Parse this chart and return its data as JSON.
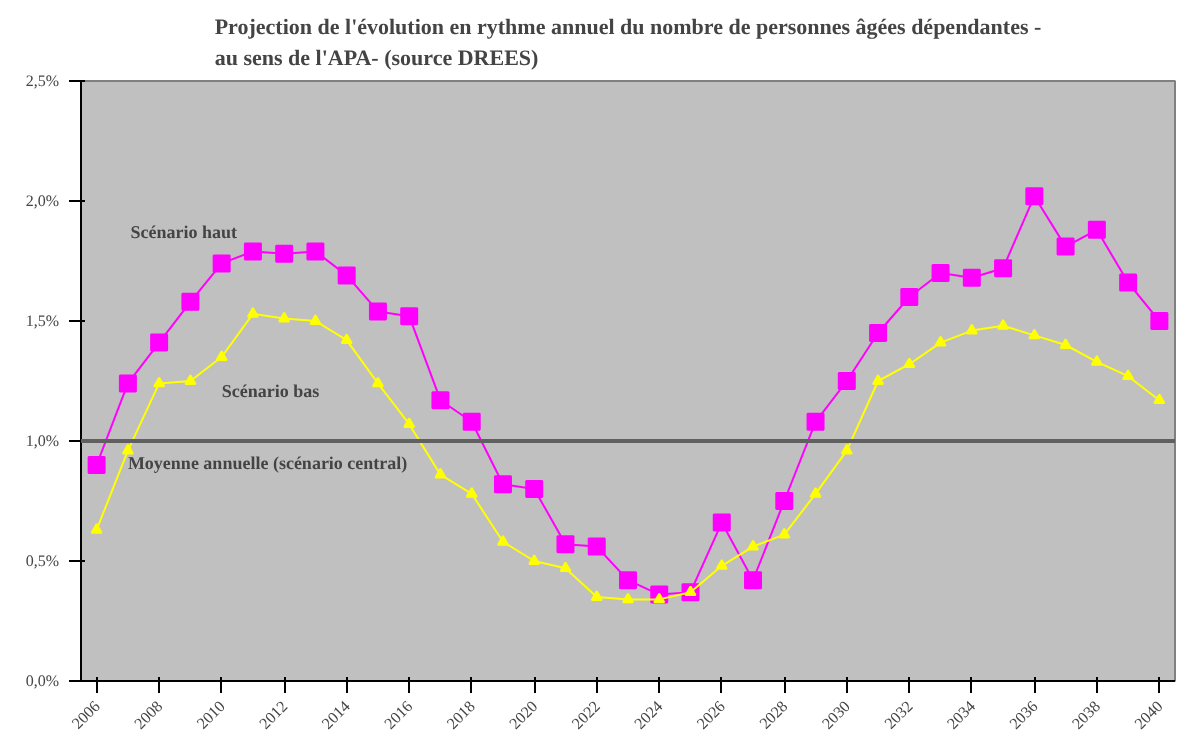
{
  "chart_data": {
    "type": "line",
    "title": "Projection de l'évolution en rythme annuel du nombre de personnes âgées dépendantes -\nau sens de l'APA- (source DREES)",
    "categories": [
      "2006",
      null,
      "2008",
      null,
      "2010",
      null,
      "2012",
      null,
      "2014",
      null,
      "2016",
      null,
      "2018",
      null,
      "2020",
      null,
      "2022",
      null,
      "2024",
      null,
      "2026",
      null,
      "2028",
      null,
      "2030",
      null,
      "2032",
      null,
      "2034",
      null,
      "2036",
      null,
      "2038",
      null,
      "2040"
    ],
    "series": [
      {
        "name": "Scénario haut",
        "color": "#ff00ff",
        "marker": "square",
        "values": [
          0.9,
          1.24,
          1.41,
          1.58,
          1.74,
          1.79,
          1.78,
          1.79,
          1.69,
          1.54,
          1.52,
          1.17,
          1.08,
          0.82,
          0.8,
          0.57,
          0.56,
          0.42,
          0.36,
          0.37,
          0.66,
          0.42,
          0.75,
          1.08,
          1.25,
          1.45,
          1.6,
          1.7,
          1.68,
          1.72,
          2.02,
          1.81,
          1.88,
          1.66,
          1.5
        ]
      },
      {
        "name": "Scénario bas",
        "color": "#ffff00",
        "marker": "triangle",
        "values": [
          0.63,
          0.96,
          1.24,
          1.25,
          1.35,
          1.53,
          1.51,
          1.5,
          1.42,
          1.24,
          1.07,
          0.86,
          0.78,
          0.58,
          0.5,
          0.47,
          0.35,
          0.34,
          0.34,
          0.37,
          0.48,
          0.56,
          0.61,
          0.78,
          0.96,
          1.25,
          1.32,
          1.41,
          1.46,
          1.48,
          1.44,
          1.4,
          1.33,
          1.27,
          1.17
        ]
      }
    ],
    "ylim": [
      0,
      2.5
    ],
    "yticks": [
      {
        "value": 0,
        "label": "0,0%"
      },
      {
        "value": 0.5,
        "label": "0,5%"
      },
      {
        "value": 1.0,
        "label": "1,0%"
      },
      {
        "value": 1.5,
        "label": "1,5%"
      },
      {
        "value": 2.0,
        "label": "2,0%"
      },
      {
        "value": 2.5,
        "label": "2,5%"
      }
    ],
    "ref_lines": [
      {
        "axis": "y",
        "value": 1.0,
        "label": "Moyenne annuelle (scénario central)",
        "color": "#606060"
      }
    ],
    "grid": false
  }
}
